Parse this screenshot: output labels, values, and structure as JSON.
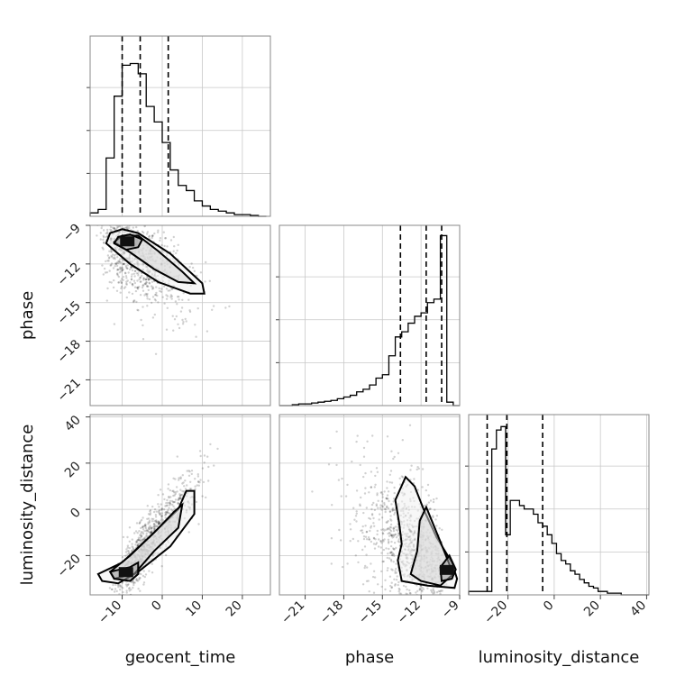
{
  "chart_data": {
    "type": "corner",
    "grid": true,
    "parameters": [
      "geocent_time",
      "phase",
      "luminosity_distance"
    ],
    "axes": {
      "geocent_time": {
        "range": [
          -18,
          27
        ],
        "ticks": [
          -10,
          0,
          10,
          20
        ],
        "tick_labels": [
          "−10",
          "0",
          "10",
          "20"
        ]
      },
      "phase": {
        "range": [
          -23,
          -9
        ],
        "ticks": [
          -21,
          -18,
          -15,
          -12,
          -9
        ],
        "tick_labels": [
          "−21",
          "−18",
          "−15",
          "−12",
          "−9"
        ]
      },
      "luminosity_distance": {
        "range": [
          -37,
          41
        ],
        "ticks": [
          -20,
          0,
          20,
          40
        ],
        "tick_labels": [
          "−20",
          "0",
          "20",
          "40"
        ]
      }
    },
    "histograms": [
      {
        "parameter": "geocent_time",
        "bin_edges": [
          -18,
          -16,
          -14,
          -12,
          -10,
          -8,
          -6,
          -4,
          -2,
          0,
          2,
          4,
          6,
          8,
          10,
          12,
          14,
          16,
          18,
          20,
          22,
          24,
          26
        ],
        "counts": [
          0.02,
          0.04,
          0.34,
          0.7,
          0.88,
          0.89,
          0.83,
          0.64,
          0.55,
          0.43,
          0.27,
          0.18,
          0.15,
          0.09,
          0.06,
          0.04,
          0.03,
          0.02,
          0.01,
          0.01,
          0.005,
          0
        ],
        "quantiles": [
          -10,
          -5.5,
          1.5
        ]
      },
      {
        "parameter": "phase",
        "bin_edges": [
          -23,
          -22.5,
          -22,
          -21.5,
          -21,
          -20.5,
          -20,
          -19.5,
          -19,
          -18.5,
          -18,
          -17.5,
          -17,
          -16.5,
          -16,
          -15.5,
          -15,
          -14.5,
          -14,
          -13.5,
          -13,
          -12.5,
          -12,
          -11.5,
          -11,
          -10.5,
          -10,
          -9.5,
          -9
        ],
        "counts": [
          0,
          0,
          0.005,
          0.01,
          0.01,
          0.015,
          0.02,
          0.025,
          0.03,
          0.04,
          0.05,
          0.06,
          0.08,
          0.095,
          0.12,
          0.16,
          0.18,
          0.29,
          0.4,
          0.43,
          0.48,
          0.52,
          0.54,
          0.6,
          0.62,
          0.99,
          0.02,
          0
        ],
        "quantiles": [
          -13.6,
          -11.6,
          -10.4
        ]
      },
      {
        "parameter": "luminosity_distance",
        "bin_edges": [
          -37,
          -35,
          -33,
          -31,
          -29,
          -27,
          -25,
          -23,
          -21,
          -19,
          -17,
          -15,
          -13,
          -11,
          -9,
          -7,
          -5,
          -3,
          -1,
          1,
          3,
          5,
          7,
          9,
          11,
          13,
          15,
          17,
          19,
          21,
          23,
          25,
          27,
          29,
          31,
          33,
          35,
          37,
          39,
          41
        ],
        "counts": [
          0.02,
          0.02,
          0.02,
          0.02,
          0.02,
          0.85,
          0.96,
          0.98,
          0.35,
          0.55,
          0.55,
          0.52,
          0.5,
          0.5,
          0.47,
          0.42,
          0.4,
          0.35,
          0.3,
          0.24,
          0.2,
          0.18,
          0.14,
          0.12,
          0.09,
          0.07,
          0.05,
          0.04,
          0.02,
          0.02,
          0.01,
          0.01,
          0.01,
          0,
          0,
          0,
          0,
          0,
          0
        ],
        "quantiles": [
          -29,
          -20.5,
          -5
        ]
      }
    ],
    "scatter_panels": [
      {
        "x": "geocent_time",
        "y": "phase",
        "trend": {
          "x0": -13,
          "y0": -10,
          "slope": -0.2
        },
        "contours": [
          [
            [
              -13,
              -9.6
            ],
            [
              -10,
              -9.3
            ],
            [
              -6,
              -9.6
            ],
            [
              2,
              -11.2
            ],
            [
              10,
              -13.5
            ],
            [
              10.5,
              -14.3
            ],
            [
              7,
              -14.3
            ],
            [
              -1,
              -13.4
            ],
            [
              -8,
              -12
            ],
            [
              -14,
              -10.4
            ]
          ],
          [
            [
              -10,
              -9.8
            ],
            [
              -6,
              -9.8
            ],
            [
              -1,
              -11
            ],
            [
              5,
              -12.6
            ],
            [
              8,
              -13.5
            ],
            [
              4,
              -13.4
            ],
            [
              -2,
              -12.4
            ],
            [
              -8,
              -11.1
            ],
            [
              -12,
              -10.3
            ]
          ],
          [
            [
              -11,
              -9.9
            ],
            [
              -8,
              -9.7
            ],
            [
              -5,
              -10.1
            ],
            [
              -6,
              -10.7
            ],
            [
              -9,
              -10.9
            ],
            [
              -12,
              -10.4
            ]
          ]
        ]
      },
      {
        "x": "geocent_time",
        "y": "luminosity_distance",
        "trend": {
          "x0": -9,
          "y0": -27,
          "slope": 2.2
        },
        "contours": [
          [
            [
              -16,
              -28
            ],
            [
              -10,
              -23
            ],
            [
              -2,
              -10
            ],
            [
              4,
              0
            ],
            [
              6,
              8
            ],
            [
              8,
              8
            ],
            [
              8,
              -2
            ],
            [
              2,
              -16
            ],
            [
              -6,
              -27
            ],
            [
              -11,
              -32
            ],
            [
              -15,
              -31
            ]
          ],
          [
            [
              -13,
              -27
            ],
            [
              -8,
              -20
            ],
            [
              -2,
              -10
            ],
            [
              3,
              -1
            ],
            [
              5,
              2
            ],
            [
              4,
              -8
            ],
            [
              -2,
              -18
            ],
            [
              -7,
              -28
            ],
            [
              -12,
              -30
            ]
          ],
          [
            [
              -13,
              -27
            ],
            [
              -8,
              -25
            ],
            [
              -6,
              -23
            ],
            [
              -6,
              -28
            ],
            [
              -8,
              -31
            ],
            [
              -12,
              -30
            ]
          ]
        ]
      },
      {
        "x": "phase",
        "y": "luminosity_distance",
        "trend": {
          "x0": -10.5,
          "y0": -28,
          "slope": 7
        },
        "contours": [
          [
            [
              -13.5,
              -31
            ],
            [
              -13.8,
              -22
            ],
            [
              -13.5,
              -15
            ],
            [
              -13.7,
              -6
            ],
            [
              -14,
              4
            ],
            [
              -13.2,
              14
            ],
            [
              -12.5,
              10
            ],
            [
              -11.8,
              0
            ],
            [
              -10.8,
              -12
            ],
            [
              -9.6,
              -23
            ],
            [
              -9.2,
              -30
            ],
            [
              -9.4,
              -34
            ],
            [
              -11.5,
              -33
            ]
          ],
          [
            [
              -12.8,
              -28
            ],
            [
              -12.3,
              -18
            ],
            [
              -12.1,
              -5
            ],
            [
              -11.6,
              1
            ],
            [
              -10.5,
              -14
            ],
            [
              -9.5,
              -28
            ],
            [
              -10.5,
              -33
            ],
            [
              -12,
              -31
            ]
          ],
          [
            [
              -10.5,
              -25
            ],
            [
              -9.8,
              -20
            ],
            [
              -9.3,
              -26
            ],
            [
              -9.6,
              -30
            ],
            [
              -10.4,
              -31
            ]
          ]
        ]
      }
    ]
  }
}
